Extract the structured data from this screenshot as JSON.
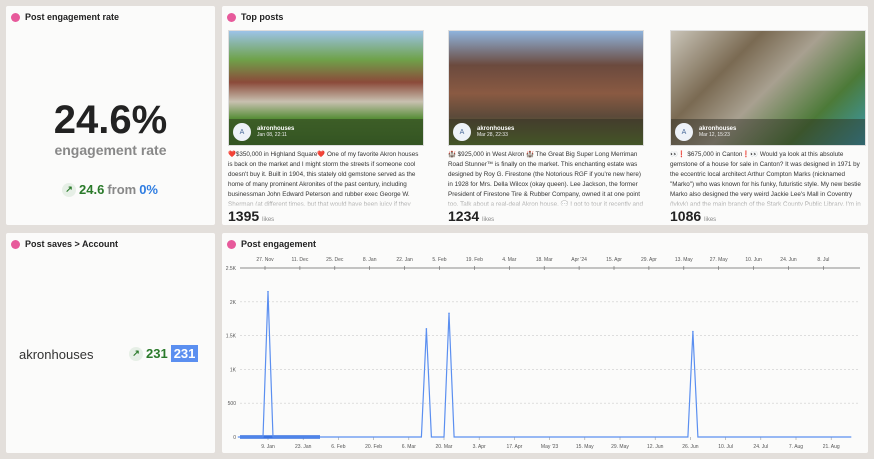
{
  "engagement_rate": {
    "title": "Post engagement rate",
    "value": "24.6%",
    "label": "engagement rate",
    "change": "24.6",
    "from_label": "from",
    "from_value": "0%",
    "change_icon": "arrow-up-right"
  },
  "top_posts": {
    "title": "Top posts",
    "likes_label": "likes",
    "posts": [
      {
        "user": "akronhouses",
        "avatar": "A",
        "date": "Jan 08, 22:11",
        "caption": "❤️$350,000 in Highland Square❤️ One of my favorite Akron houses is back on the market and I might storm the streets if someone cool doesn't buy it. Built in 1904, this stately old gemstone served as the home of many prominent Akronites of the past century, including businessman John Edward Peterson and rubber exec George W. Sherman (at different times, but that would have been juicy if they lived together 🥂). Highlights:",
        "likes": "1395"
      },
      {
        "user": "akronhouses",
        "avatar": "A",
        "date": "Mar 28, 22:33",
        "caption": "🏰 $925,000 in West Akron 🏰 The Great Big Super Long Merriman Road Stunner™ is finally on the market. This enchanting estate was designed by Roy G. Firestone (the Notorious RGF if you're new here) in 1928 for Mrs. Della Wilcox (okay queen). Lee Jackson, the former President of Firestone Tire & Rubber Company, owned it at one point too. Talk about a real-deal Akron house. 💬 I got to tour it recently and some unexpected highlights",
        "likes": "1234"
      },
      {
        "user": "akronhouses",
        "avatar": "A",
        "date": "Mar 12, 15:23",
        "caption": "👀❗ $675,000 in Canton❗👀 Would ya look at this absolute gemstone of a house for sale in Canton? It was designed in 1971 by the eccentric local architect Arthur Compton Marks (nicknamed \"Marko\") who was known for his funky, futuristic style. My new bestie Marko also designed the very weird Jackie Lee's Mall in Coventry (lykyk) and the main branch of the Stark County Public Library. I'm in awe of this weirdo's work and the fact that",
        "likes": "1086"
      }
    ]
  },
  "post_saves": {
    "title": "Post saves > Account",
    "account": "akronhouses",
    "change": "231",
    "value": "231"
  },
  "colors": {
    "accent": "#e75a9b",
    "series": "#5b8ff0",
    "positive": "#2a7a2a"
  },
  "chart_data": {
    "type": "line",
    "title": "Post engagement",
    "ylim": [
      0,
      2500
    ],
    "yticks": [
      "0",
      "500",
      "1K",
      "1.5K",
      "2K",
      "2.5K"
    ],
    "x_ticks_bottom": [
      "9. Jan",
      "23. Jan",
      "6. Feb",
      "20. Feb",
      "6. Mar",
      "20. Mar",
      "3. Apr",
      "17. Apr",
      "May '23",
      "15. May",
      "29. May",
      "12. Jun",
      "26. Jun",
      "10. Jul",
      "24. Jul",
      "7. Aug",
      "21. Aug"
    ],
    "x_ticks_top": [
      "27. Nov",
      "11. Dec",
      "25. Dec",
      "8. Jan",
      "22. Jan",
      "5. Feb",
      "19. Feb",
      "4. Mar",
      "18. Mar",
      "Apr '24",
      "15. Apr",
      "29. Apr",
      "13. May",
      "27. May",
      "10. Jun",
      "24. Jun",
      "8. Jul"
    ],
    "grid": true,
    "series": [
      {
        "points": [
          [
            "2022-12-28",
            0
          ],
          [
            "2023-01-07",
            0
          ],
          [
            "2023-01-09",
            2150
          ],
          [
            "2023-01-11",
            0
          ],
          [
            "2023-03-11",
            0
          ],
          [
            "2023-03-13",
            1600
          ],
          [
            "2023-03-15",
            0
          ],
          [
            "2023-03-20",
            0
          ],
          [
            "2023-03-22",
            1830
          ],
          [
            "2023-03-24",
            0
          ],
          [
            "2023-06-25",
            0
          ],
          [
            "2023-06-27",
            1560
          ],
          [
            "2023-06-29",
            0
          ],
          [
            "2023-08-29",
            0
          ]
        ]
      }
    ]
  }
}
